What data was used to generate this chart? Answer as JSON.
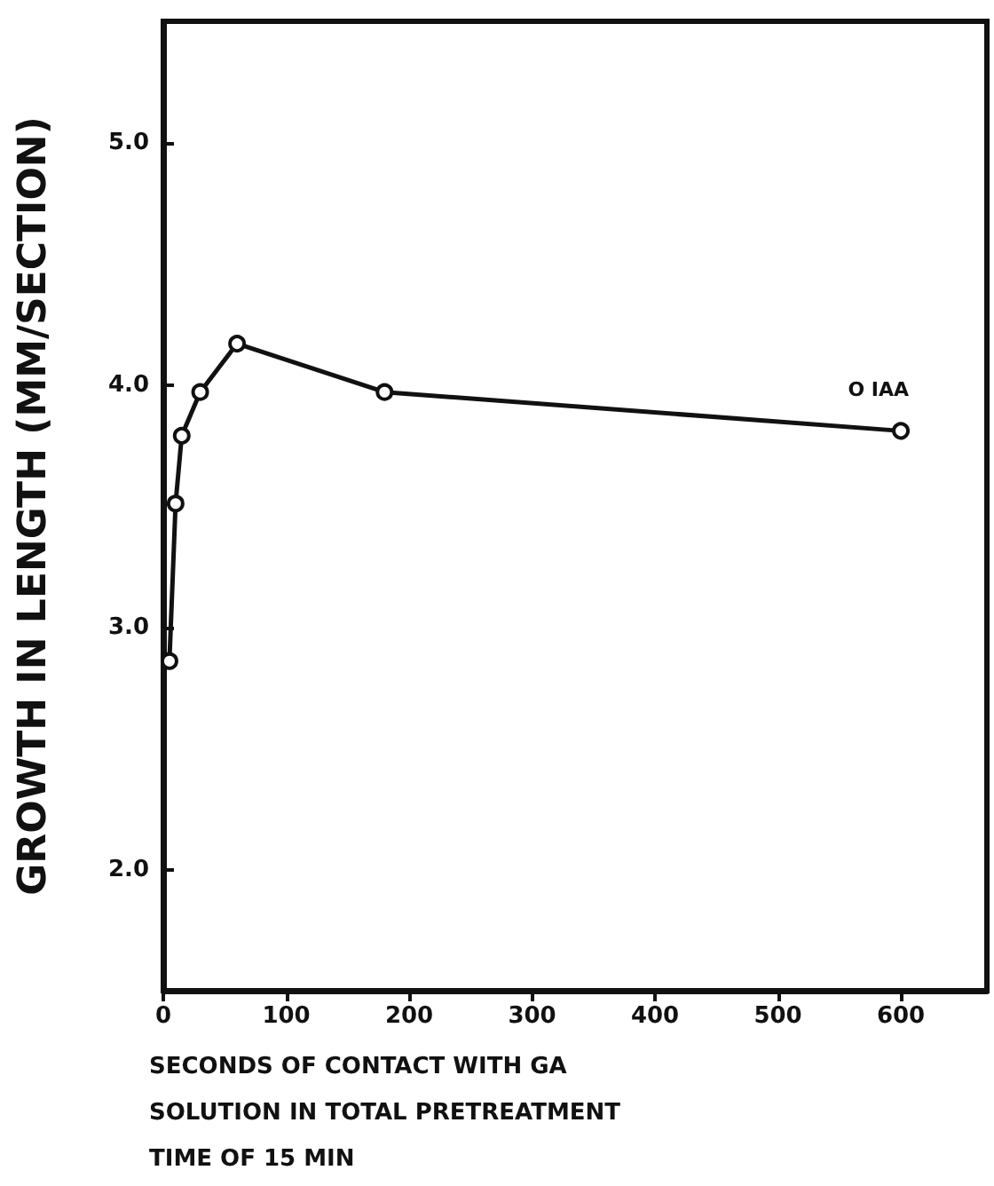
{
  "chart_data": {
    "type": "line",
    "xlabel": "SECONDS OF CONTACT WITH GA\nSOLUTION IN TOTAL PRETREATMENT\nTIME OF 15 MIN",
    "ylabel": "GROWTH IN LENGTH (MM/SECTION)",
    "x": [
      5,
      10,
      15,
      30,
      60,
      180,
      600
    ],
    "series": [
      {
        "color": "#111111",
        "values": [
          2.86,
          3.51,
          3.79,
          3.97,
          4.17,
          3.97,
          3.81
        ]
      }
    ],
    "xlim": [
      0,
      670
    ],
    "xticks": [
      0,
      100,
      200,
      300,
      400,
      500,
      600
    ],
    "ylim": [
      1.5,
      5.5
    ],
    "yticks": [
      {
        "value": 2,
        "label": "2.0"
      },
      {
        "value": 3,
        "label": "3.0"
      },
      {
        "value": 4,
        "label": "4.0"
      },
      {
        "value": 5,
        "label": "5.0"
      }
    ],
    "annotations": [
      "O IAA"
    ],
    "grid": false,
    "marker": "circle",
    "line_style": "solid"
  }
}
